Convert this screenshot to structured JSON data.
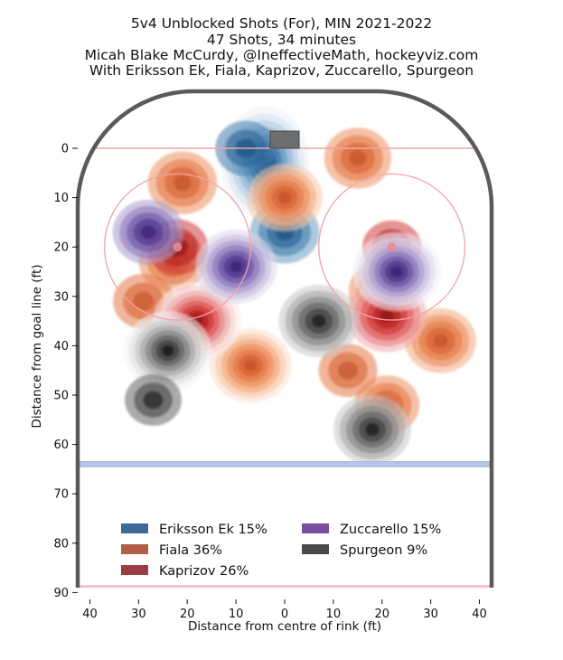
{
  "chart_data": {
    "type": "heatmap",
    "title_lines": [
      "5v4 Unblocked Shots (For), MIN 2021-2022",
      "47 Shots, 34 minutes",
      "Micah Blake McCurdy, @IneffectiveMath, hockeyviz.com",
      "With Eriksson Ek, Fiala, Kaprizov, Zuccarello, Spurgeon"
    ],
    "xlabel": "Distance from centre of rink (ft)",
    "ylabel": "Distance from goal line (ft)",
    "xlim": [
      -42.5,
      42.5
    ],
    "ylim": [
      -11,
      90
    ],
    "x_ticks": [
      {
        "value": -40,
        "label": "40"
      },
      {
        "value": -30,
        "label": "30"
      },
      {
        "value": -20,
        "label": "20"
      },
      {
        "value": -10,
        "label": "10"
      },
      {
        "value": 0,
        "label": "0"
      },
      {
        "value": 10,
        "label": "10"
      },
      {
        "value": 20,
        "label": "20"
      },
      {
        "value": 30,
        "label": "30"
      },
      {
        "value": 40,
        "label": "40"
      }
    ],
    "y_ticks": [
      {
        "value": 0,
        "label": "0"
      },
      {
        "value": 10,
        "label": "10"
      },
      {
        "value": 20,
        "label": "20"
      },
      {
        "value": 30,
        "label": "30"
      },
      {
        "value": 40,
        "label": "40"
      },
      {
        "value": 50,
        "label": "50"
      },
      {
        "value": 60,
        "label": "60"
      },
      {
        "value": 70,
        "label": "70"
      },
      {
        "value": 80,
        "label": "80"
      },
      {
        "value": 90,
        "label": "90"
      }
    ],
    "rink": {
      "goal_line_y": 0,
      "blue_line_y": 64,
      "centre_line_y": 89,
      "faceoff_circles": [
        {
          "x": -22,
          "y": 20,
          "r": 15
        },
        {
          "x": 22,
          "y": 20,
          "r": 15
        }
      ],
      "faceoff_dots": [
        {
          "x": -22,
          "y": 20
        },
        {
          "x": 22,
          "y": 20
        }
      ]
    },
    "series": [
      {
        "name": "Eriksson Ek",
        "share": "15%",
        "color": "#3d6a96",
        "palette": "blue",
        "hotspots": [
          {
            "x": -4,
            "y": 3,
            "w": 1.0
          },
          {
            "x": 0,
            "y": 17,
            "w": 0.55
          },
          {
            "x": -8,
            "y": 0,
            "w": 0.35
          }
        ]
      },
      {
        "name": "Fiala",
        "share": "36%",
        "color": "#b05e44",
        "palette": "orange",
        "hotspots": [
          {
            "x": 0,
            "y": 10,
            "w": 0.7
          },
          {
            "x": 15,
            "y": 2,
            "w": 0.5
          },
          {
            "x": -21,
            "y": 7,
            "w": 0.55
          },
          {
            "x": -23,
            "y": 23,
            "w": 0.5
          },
          {
            "x": -7,
            "y": 44,
            "w": 0.85
          },
          {
            "x": 32,
            "y": 39,
            "w": 0.6
          },
          {
            "x": 20,
            "y": 29,
            "w": 0.5
          },
          {
            "x": 21,
            "y": 52,
            "w": 0.45
          },
          {
            "x": -29,
            "y": 31,
            "w": 0.35
          },
          {
            "x": 13,
            "y": 45,
            "w": 0.3
          }
        ]
      },
      {
        "name": "Kaprizov",
        "share": "26%",
        "color": "#9b3b45",
        "palette": "red",
        "hotspots": [
          {
            "x": -18,
            "y": 35,
            "w": 1.0
          },
          {
            "x": 21,
            "y": 34,
            "w": 0.8
          },
          {
            "x": -22,
            "y": 20,
            "w": 0.35
          },
          {
            "x": 22,
            "y": 20,
            "w": 0.3
          }
        ]
      },
      {
        "name": "Zuccarello",
        "share": "15%",
        "color": "#7a4f9f",
        "palette": "purple",
        "hotspots": [
          {
            "x": 23,
            "y": 25,
            "w": 1.0
          },
          {
            "x": -10,
            "y": 24,
            "w": 0.85
          },
          {
            "x": -28,
            "y": 17,
            "w": 0.6
          }
        ]
      },
      {
        "name": "Spurgeon",
        "share": "9%",
        "color": "#4a4a4a",
        "palette": "gray",
        "hotspots": [
          {
            "x": -24,
            "y": 41,
            "w": 1.0
          },
          {
            "x": 7,
            "y": 35,
            "w": 0.8
          },
          {
            "x": 18,
            "y": 57,
            "w": 0.75
          },
          {
            "x": -27,
            "y": 51,
            "w": 0.25
          }
        ]
      }
    ]
  }
}
